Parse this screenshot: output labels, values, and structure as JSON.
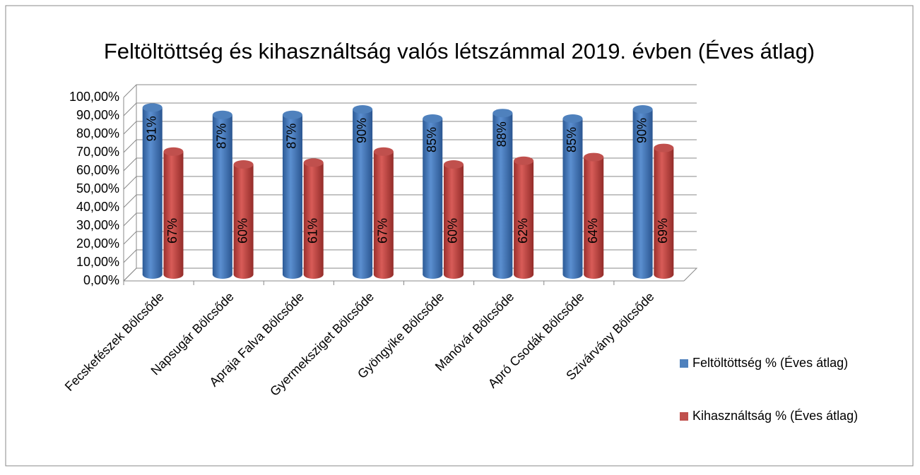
{
  "chart_data": {
    "type": "bar3d",
    "title": "Feltöltöttség és kihasználtság valós létszámmal 2019. évben (Éves átlag)",
    "categories": [
      "Fecskefészek Bölcsőde",
      "Napsugár Bölcsőde",
      "Apraja Falva Bölcsőde",
      "Gyermeksziget Bölcsőde",
      "Gyöngyike Bölcsőde",
      "Manóvár Bölcsőde",
      "Apró Csodák Bölcsőde",
      "Szivárvány Bölcsőde"
    ],
    "series": [
      {
        "name": "Feltöltöttség % (Éves átlag)",
        "color": "#4f81bd",
        "values": [
          91,
          87,
          87,
          90,
          85,
          88,
          85,
          90
        ],
        "value_labels": [
          "91%",
          "87%",
          "87%",
          "90%",
          "85%",
          "88%",
          "85%",
          "90%"
        ]
      },
      {
        "name": "Kihasználtság % (Éves átlag)",
        "color": "#c0504d",
        "values": [
          67,
          60,
          61,
          67,
          60,
          62,
          64,
          69
        ],
        "value_labels": [
          "67%",
          "60%",
          "61%",
          "67%",
          "60%",
          "62%",
          "64%",
          "69%"
        ]
      }
    ],
    "ylim": [
      0,
      100
    ],
    "yticks": [
      {
        "value": 0,
        "label": "0,00%"
      },
      {
        "value": 10,
        "label": "10,00%"
      },
      {
        "value": 20,
        "label": "20,00%"
      },
      {
        "value": 30,
        "label": "30,00%"
      },
      {
        "value": 40,
        "label": "40,00%"
      },
      {
        "value": 50,
        "label": "50,00%"
      },
      {
        "value": 60,
        "label": "60,00%"
      },
      {
        "value": 70,
        "label": "70,00%"
      },
      {
        "value": 80,
        "label": "80,00%"
      },
      {
        "value": 90,
        "label": "90,00%"
      },
      {
        "value": 100,
        "label": "100,00%"
      }
    ],
    "grid": true,
    "legend": "right"
  }
}
